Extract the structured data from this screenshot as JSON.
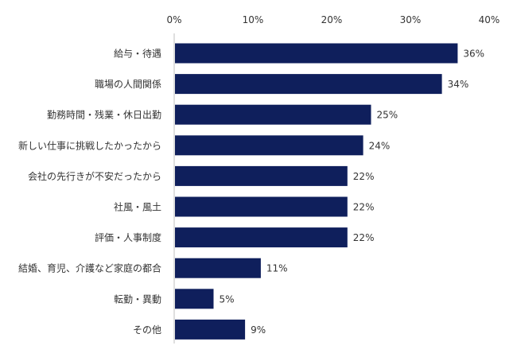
{
  "chart_data": {
    "type": "bar",
    "orientation": "horizontal",
    "categories": [
      "給与・待遇",
      "職場の人間関係",
      "勤務時間・残業・休日出勤",
      "新しい仕事に挑戦したかったから",
      "会社の先行きが不安だったから",
      "社風・風土",
      "評価・人事制度",
      "結婚、育児、介護など家庭の都合",
      "転勤・異動",
      "その他"
    ],
    "values": [
      36,
      34,
      25,
      24,
      22,
      22,
      22,
      11,
      5,
      9
    ],
    "data_labels": [
      "36%",
      "34%",
      "25%",
      "24%",
      "22%",
      "22%",
      "22%",
      "11%",
      "5%",
      "9%"
    ],
    "xlim": [
      0,
      40
    ],
    "x_ticks": [
      0,
      10,
      20,
      30,
      40
    ],
    "x_tick_labels": [
      "0%",
      "10%",
      "20%",
      "30%",
      "40%"
    ],
    "x_axis_position": "top",
    "grid": false,
    "legend": false,
    "bar_color": "#0f1f5c",
    "axis_color": "#bfbfbf"
  }
}
